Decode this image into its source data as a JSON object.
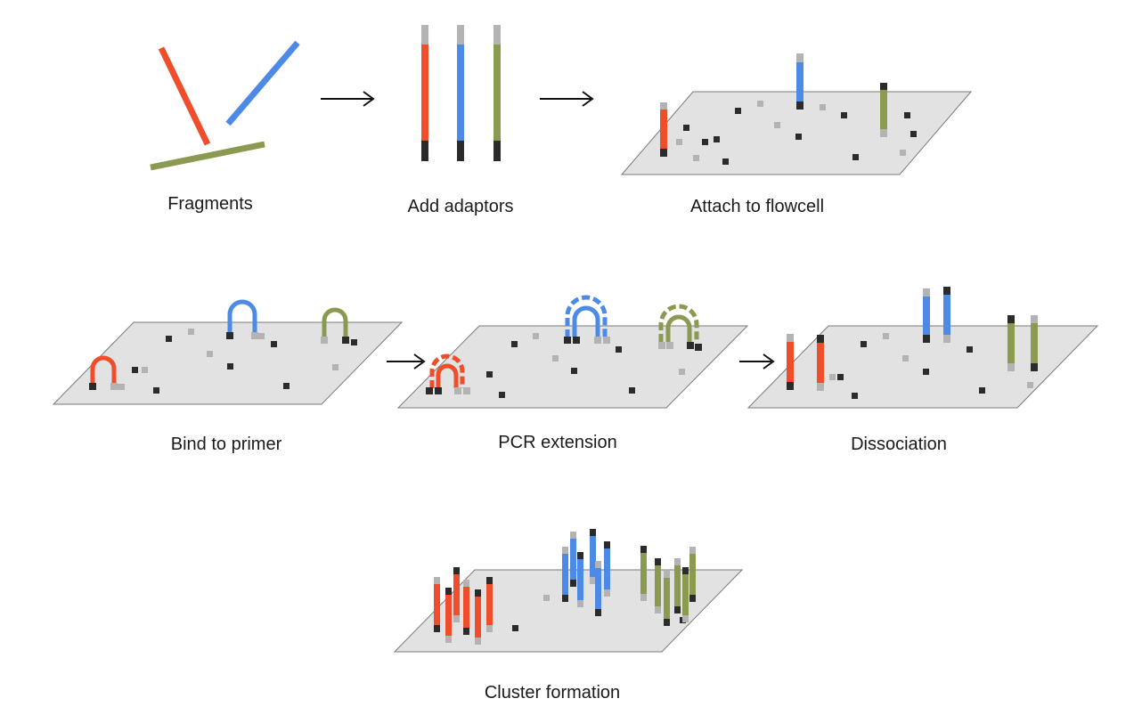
{
  "colors": {
    "red": "#ef4d2c",
    "blue": "#4d8ae6",
    "olive": "#8a9a50",
    "dark": "#2b2b2b",
    "light": "#b3b3b3",
    "surface": "#e2e2e2",
    "surface_edge": "#7a7a7a"
  },
  "steps": {
    "fragments": {
      "label": "Fragments"
    },
    "add_adaptors": {
      "label": "Add adaptors"
    },
    "attach": {
      "label": "Attach to flowcell"
    },
    "bind": {
      "label": "Bind to primer"
    },
    "pcr": {
      "label": "PCR extension"
    },
    "dissociation": {
      "label": "Dissociation"
    },
    "cluster": {
      "label": "Cluster formation"
    }
  }
}
